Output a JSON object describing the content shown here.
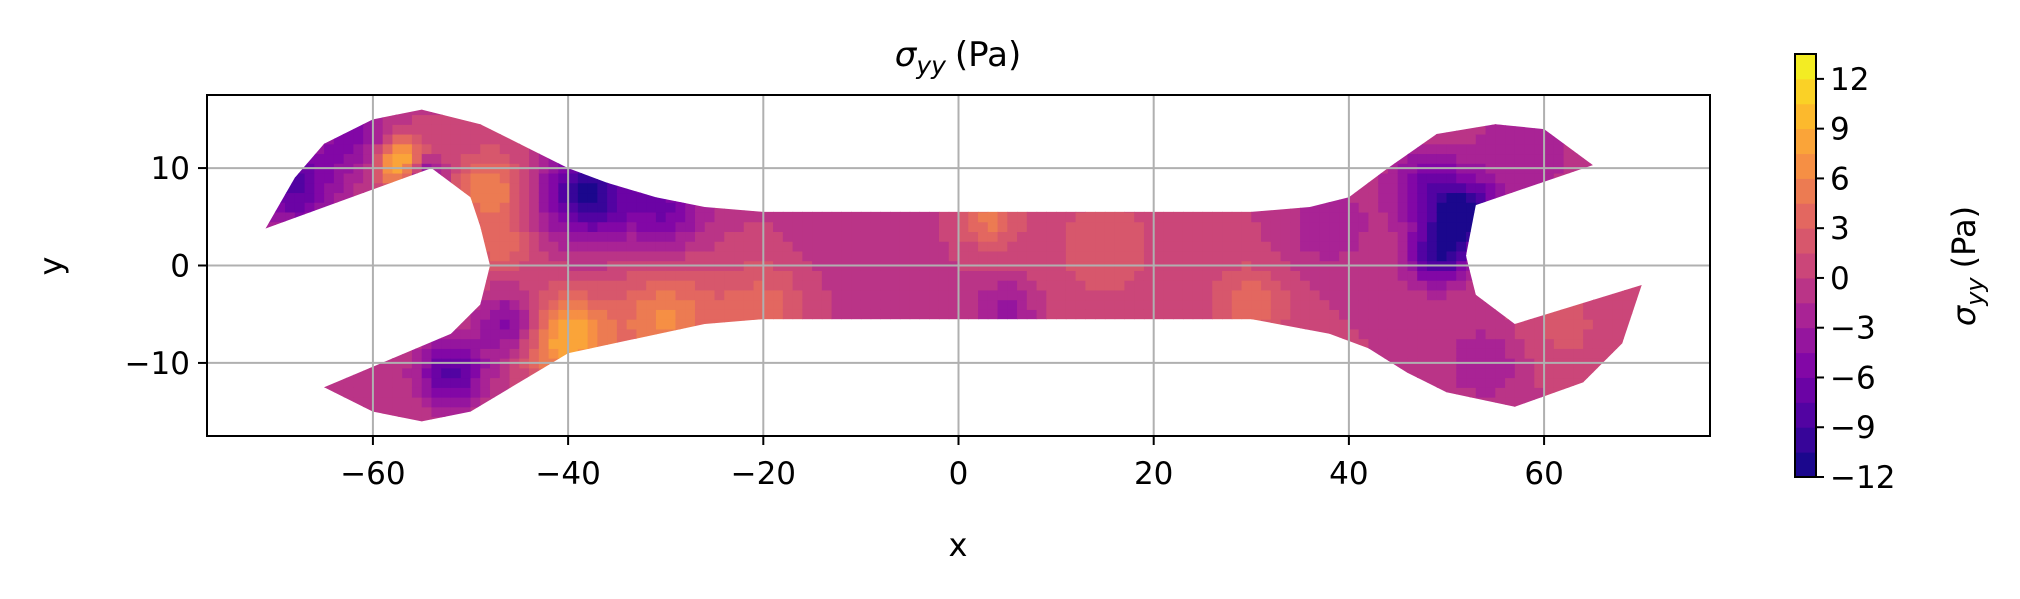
{
  "chart_data": {
    "type": "heatmap",
    "title": "σyy (Pa)",
    "title_parts": {
      "symbol": "σ",
      "subscript": "yy",
      "unit": "(Pa)"
    },
    "xlabel": "x",
    "ylabel": "y",
    "xlim": [
      -77,
      77
    ],
    "ylim": [
      -17.5,
      17.5
    ],
    "xticks": [
      -60,
      -40,
      -20,
      0,
      20,
      40,
      60
    ],
    "yticks": [
      -10,
      0,
      10
    ],
    "xtick_labels": [
      "−60",
      "−40",
      "−20",
      "0",
      "20",
      "40",
      "60"
    ],
    "ytick_labels": [
      "−10",
      "0",
      "10"
    ],
    "grid": true,
    "colormap": "plasma",
    "colorbar": {
      "label_symbol": "σ",
      "label_subscript": "yy",
      "label_unit": "(Pa)",
      "min": -12,
      "max": 13.5,
      "ticks": [
        -12,
        -9,
        -6,
        -3,
        0,
        3,
        6,
        9,
        12
      ],
      "tick_labels": [
        "−12",
        "−9",
        "−6",
        "−3",
        "0",
        "3",
        "6",
        "9",
        "12"
      ]
    },
    "outline": [
      [
        -71,
        3.8
      ],
      [
        -68,
        9
      ],
      [
        -65,
        12.5
      ],
      [
        -60,
        15
      ],
      [
        -55,
        16
      ],
      [
        -49,
        14.5
      ],
      [
        -44,
        12
      ],
      [
        -40,
        10
      ],
      [
        -36,
        8.5
      ],
      [
        -31,
        7
      ],
      [
        -26,
        6
      ],
      [
        -20,
        5.5
      ],
      [
        20,
        5.5
      ],
      [
        30,
        5.5
      ],
      [
        36,
        6
      ],
      [
        40,
        7
      ],
      [
        44,
        10
      ],
      [
        49,
        13.5
      ],
      [
        55,
        14.5
      ],
      [
        60,
        14
      ],
      [
        65,
        10.3
      ],
      [
        53,
        6.2
      ],
      [
        52,
        1
      ],
      [
        53,
        -3
      ],
      [
        57,
        -6
      ],
      [
        70,
        -2
      ],
      [
        68,
        -8
      ],
      [
        64,
        -12
      ],
      [
        57,
        -14.5
      ],
      [
        50,
        -13
      ],
      [
        46,
        -11
      ],
      [
        42,
        -8.5
      ],
      [
        38,
        -7
      ],
      [
        30,
        -5.5
      ],
      [
        -20,
        -5.5
      ],
      [
        -26,
        -6
      ],
      [
        -33,
        -7.5
      ],
      [
        -40,
        -9
      ],
      [
        -45,
        -12
      ],
      [
        -50,
        -15
      ],
      [
        -55,
        -16
      ],
      [
        -60,
        -15
      ],
      [
        -65,
        -12.5
      ],
      [
        -52,
        -7
      ],
      [
        -49,
        -4
      ],
      [
        -48,
        0
      ],
      [
        -49,
        4
      ],
      [
        -50,
        7
      ],
      [
        -54,
        10
      ]
    ],
    "field_features": [
      {
        "x": -57,
        "y": 10.5,
        "value": 12,
        "radius": 2.6
      },
      {
        "x": -55,
        "y": 9.5,
        "value": -9,
        "radius": 2
      },
      {
        "x": -68,
        "y": 8,
        "value": -8,
        "radius": 4
      },
      {
        "x": -62,
        "y": 13,
        "value": -5,
        "radius": 4
      },
      {
        "x": -48,
        "y": 8,
        "value": 6,
        "radius": 3.5
      },
      {
        "x": -47,
        "y": 2,
        "value": 4,
        "radius": 3
      },
      {
        "x": -38,
        "y": 7.5,
        "value": -11,
        "radius": 4.5
      },
      {
        "x": -30,
        "y": 5.8,
        "value": -6,
        "radius": 4
      },
      {
        "x": -46,
        "y": -6,
        "value": -6,
        "radius": 3
      },
      {
        "x": -52,
        "y": -11,
        "value": -8,
        "radius": 3.5
      },
      {
        "x": -40,
        "y": -7.5,
        "value": 9,
        "radius": 4.5
      },
      {
        "x": -30,
        "y": -5.5,
        "value": 6,
        "radius": 5
      },
      {
        "x": -20,
        "y": -4.5,
        "value": 4,
        "radius": 5
      },
      {
        "x": -10,
        "y": 1,
        "value": -1,
        "radius": 8
      },
      {
        "x": 3,
        "y": 5,
        "value": 5,
        "radius": 3
      },
      {
        "x": 5,
        "y": -4.5,
        "value": -4,
        "radius": 3
      },
      {
        "x": 15,
        "y": 2,
        "value": 2,
        "radius": 8
      },
      {
        "x": 30,
        "y": -4,
        "value": 4,
        "radius": 4
      },
      {
        "x": 38,
        "y": 4,
        "value": -3,
        "radius": 4
      },
      {
        "x": 52,
        "y": 5,
        "value": -11,
        "radius": 3.5
      },
      {
        "x": 49,
        "y": 1,
        "value": -9,
        "radius": 3
      },
      {
        "x": 48,
        "y": 8,
        "value": -6,
        "radius": 4
      },
      {
        "x": 58,
        "y": 12,
        "value": -3,
        "radius": 5
      },
      {
        "x": 62,
        "y": -6,
        "value": 2,
        "radius": 5
      },
      {
        "x": 54,
        "y": -10,
        "value": -3,
        "radius": 4
      }
    ]
  }
}
